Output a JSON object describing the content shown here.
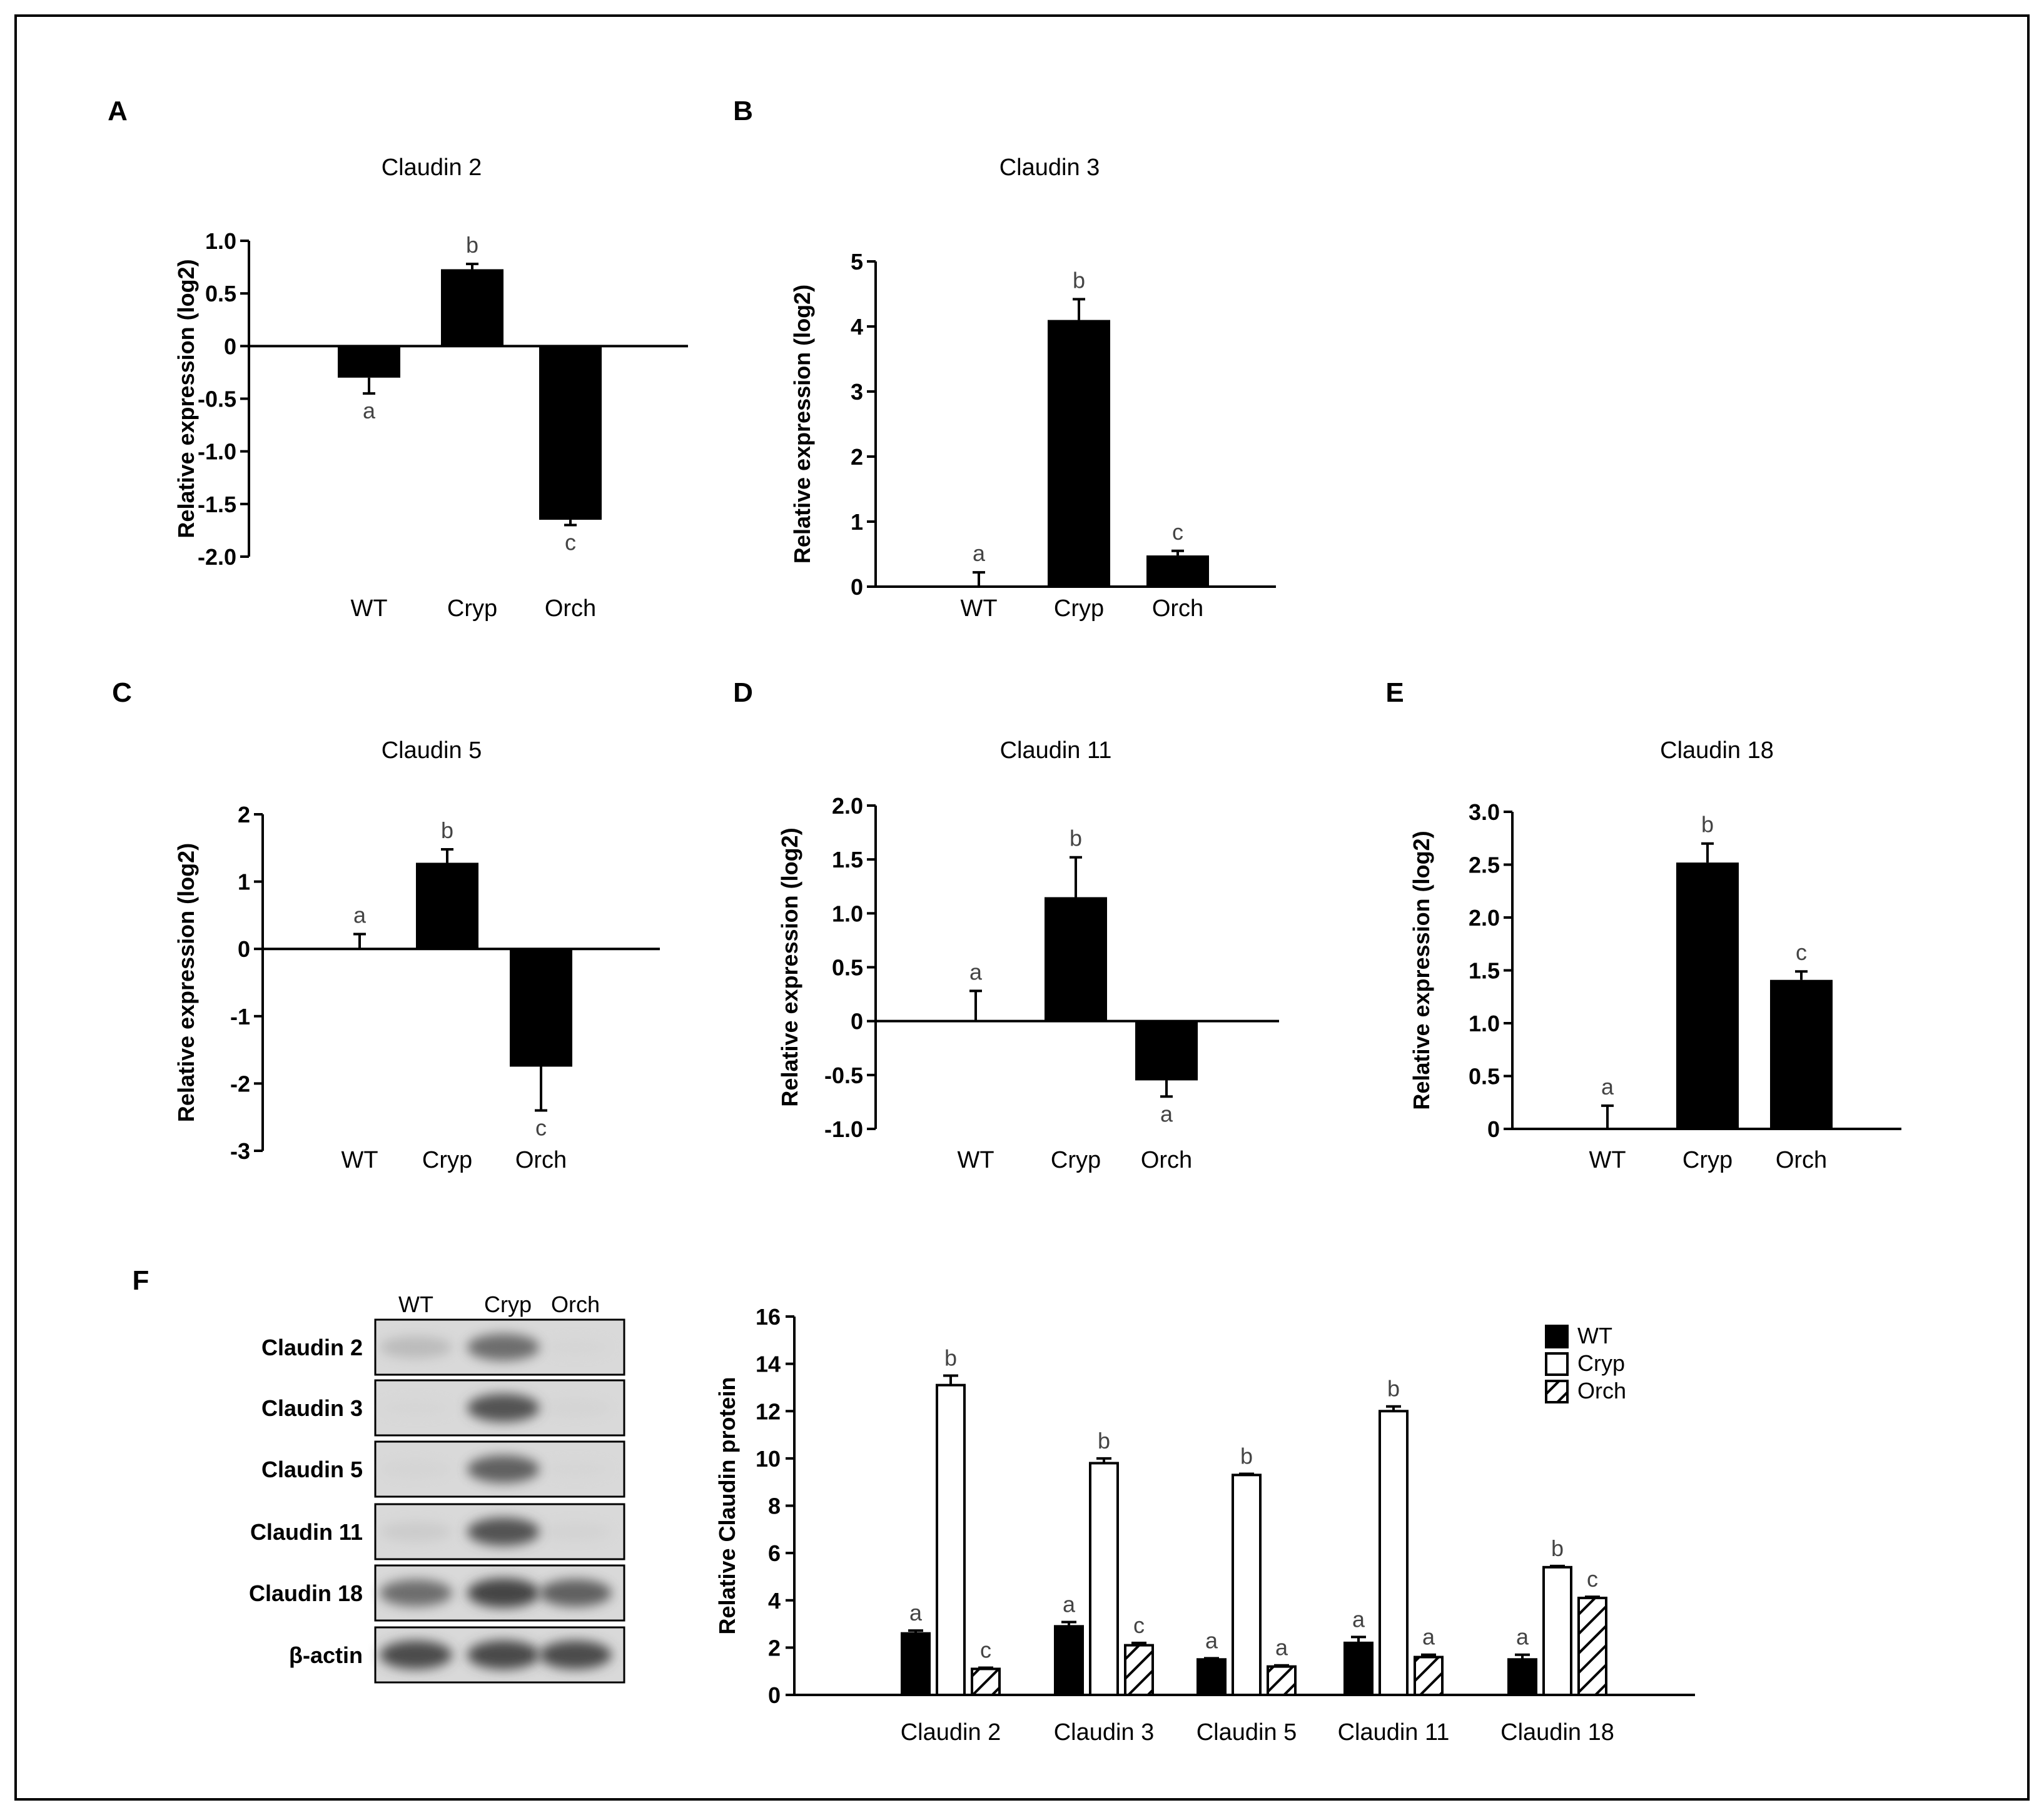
{
  "figure": {
    "border_color": "#000000",
    "bar_color": "#000000"
  },
  "chart_data": [
    {
      "panel": "A",
      "type": "bar",
      "title": "Claudin 2",
      "ylabel": "Relative expression (log2)",
      "categories": [
        "WT",
        "Cryp",
        "Orch"
      ],
      "values": [
        -0.3,
        0.73,
        -1.65
      ],
      "errors": [
        0.15,
        0.05,
        0.05
      ],
      "significance": [
        "a",
        "b",
        "c"
      ],
      "ylim": [
        -2.0,
        1.0
      ],
      "yticks": [
        "1.0",
        "0.5",
        "0",
        "-0.5",
        "-1.0",
        "-1.5",
        "-2.0"
      ],
      "ytick_values": [
        1.0,
        0.5,
        0,
        -0.5,
        -1.0,
        -1.5,
        -2.0
      ]
    },
    {
      "panel": "B",
      "type": "bar",
      "title": "Claudin 3",
      "ylabel": "Relative expression (log2)",
      "categories": [
        "WT",
        "Cryp",
        "Orch"
      ],
      "values": [
        0.0,
        4.1,
        0.48
      ],
      "errors": [
        0.22,
        0.32,
        0.07
      ],
      "significance": [
        "a",
        "b",
        "c"
      ],
      "ylim": [
        0,
        5
      ],
      "yticks": [
        "5",
        "4",
        "3",
        "2",
        "1",
        "0"
      ],
      "ytick_values": [
        5,
        4,
        3,
        2,
        1,
        0
      ]
    },
    {
      "panel": "C",
      "type": "bar",
      "title": "Claudin 5",
      "ylabel": "Relative expression (log2)",
      "categories": [
        "WT",
        "Cryp",
        "Orch"
      ],
      "values": [
        0.0,
        1.28,
        -1.75
      ],
      "errors": [
        0.22,
        0.2,
        0.65
      ],
      "significance": [
        "a",
        "b",
        "c"
      ],
      "ylim": [
        -3,
        2
      ],
      "yticks": [
        "2",
        "1",
        "0",
        "-1",
        "-2",
        "-3"
      ],
      "ytick_values": [
        2,
        1,
        0,
        -1,
        -2,
        -3
      ]
    },
    {
      "panel": "D",
      "type": "bar",
      "title": "Claudin 11",
      "ylabel": "Relative expression (log2)",
      "categories": [
        "WT",
        "Cryp",
        "Orch"
      ],
      "values": [
        0.0,
        1.15,
        -0.55
      ],
      "errors": [
        0.28,
        0.37,
        0.15
      ],
      "significance": [
        "a",
        "b",
        "a"
      ],
      "ylim": [
        -1.0,
        2.0
      ],
      "yticks": [
        "2.0",
        "1.5",
        "1.0",
        "0.5",
        "0",
        "-0.5",
        "-1.0"
      ],
      "ytick_values": [
        2.0,
        1.5,
        1.0,
        0.5,
        0,
        -0.5,
        -1.0
      ]
    },
    {
      "panel": "E",
      "type": "bar",
      "title": "Claudin 18",
      "ylabel": "Relative expression (log2)",
      "categories": [
        "WT",
        "Cryp",
        "Orch"
      ],
      "values": [
        0.0,
        2.52,
        1.41
      ],
      "errors": [
        0.22,
        0.18,
        0.08
      ],
      "significance": [
        "a",
        "b",
        "c"
      ],
      "ylim": [
        0,
        3.0
      ],
      "yticks": [
        "3.0",
        "2.5",
        "2.0",
        "1.5",
        "1.0",
        "0.5",
        "0"
      ],
      "ytick_values": [
        3.0,
        2.5,
        2.0,
        1.5,
        1.0,
        0.5,
        0
      ]
    },
    {
      "panel": "F",
      "type": "bar",
      "ylabel": "Relative Claudin protein",
      "categories": [
        "Claudin 2",
        "Claudin 3",
        "Claudin 5",
        "Claudin 11",
        "Claudin 18"
      ],
      "series": [
        {
          "name": "WT",
          "fill": "solid",
          "values": [
            2.6,
            2.9,
            1.5,
            2.2,
            1.5
          ],
          "errors": [
            0.12,
            0.18,
            0.05,
            0.25,
            0.2
          ],
          "significance": [
            "a",
            "a",
            "a",
            "a",
            "a"
          ]
        },
        {
          "name": "Cryp",
          "fill": "open",
          "values": [
            13.1,
            9.8,
            9.3,
            12.0,
            5.4
          ],
          "errors": [
            0.4,
            0.2,
            0.05,
            0.2,
            0.05
          ],
          "significance": [
            "b",
            "b",
            "b",
            "b",
            "b"
          ]
        },
        {
          "name": "Orch",
          "fill": "hatched",
          "values": [
            1.1,
            2.1,
            1.2,
            1.6,
            4.1
          ],
          "errors": [
            0.05,
            0.1,
            0.05,
            0.1,
            0.05
          ],
          "significance": [
            "c",
            "c",
            "a",
            "a",
            "c"
          ]
        }
      ],
      "ylim": [
        0,
        16
      ],
      "yticks": [
        "16",
        "14",
        "12",
        "10",
        "8",
        "6",
        "4",
        "2",
        "0"
      ],
      "ytick_values": [
        16,
        14,
        12,
        10,
        8,
        6,
        4,
        2,
        0
      ],
      "legend": [
        "WT",
        "Cryp",
        "Orch"
      ],
      "legend_position": "top-right"
    }
  ],
  "western_blot": {
    "lanes": [
      "WT",
      "Cryp",
      "Orch"
    ],
    "rows": [
      "Claudin 2",
      "Claudin 3",
      "Claudin 5",
      "Claudin 11",
      "Claudin 18",
      "β-actin"
    ],
    "intensity": [
      [
        0.35,
        0.75,
        0.05
      ],
      [
        0.05,
        0.85,
        0.08
      ],
      [
        0.08,
        0.8,
        0.05
      ],
      [
        0.2,
        0.85,
        0.1
      ],
      [
        0.75,
        0.95,
        0.8
      ],
      [
        0.9,
        0.92,
        0.9
      ]
    ]
  }
}
